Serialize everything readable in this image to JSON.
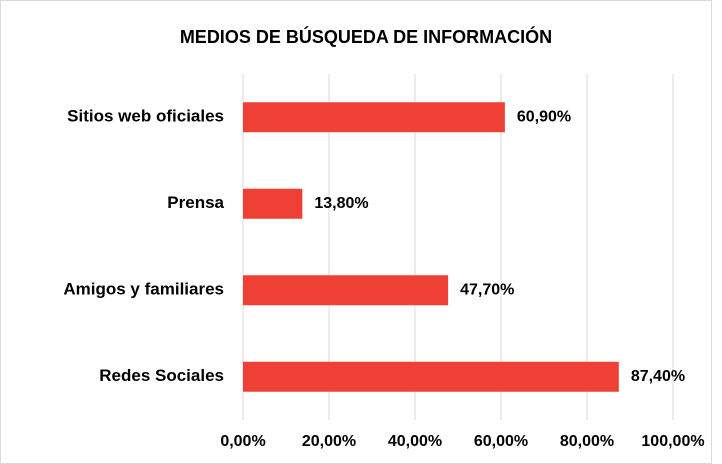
{
  "chart_data": {
    "type": "bar",
    "orientation": "horizontal",
    "title": "MEDIOS DE BÚSQUEDA DE INFORMACIÓN",
    "categories": [
      "Sitios web oficiales",
      "Prensa",
      "Amigos y familiares",
      "Redes Sociales"
    ],
    "values": [
      60.9,
      13.8,
      47.7,
      87.4
    ],
    "value_labels": [
      "60,90%",
      "13,80%",
      "47,70%",
      "87,40%"
    ],
    "color": "#ee4035",
    "xlim": [
      0,
      100
    ],
    "xticks": [
      {
        "value": 0,
        "label": "0,00%"
      },
      {
        "value": 20,
        "label": "20,00%"
      },
      {
        "value": 40,
        "label": "40,00%"
      },
      {
        "value": 60,
        "label": "60,00%"
      },
      {
        "value": 80,
        "label": "80,00%"
      },
      {
        "value": 100,
        "label": "100,00%"
      }
    ],
    "grid": true
  }
}
